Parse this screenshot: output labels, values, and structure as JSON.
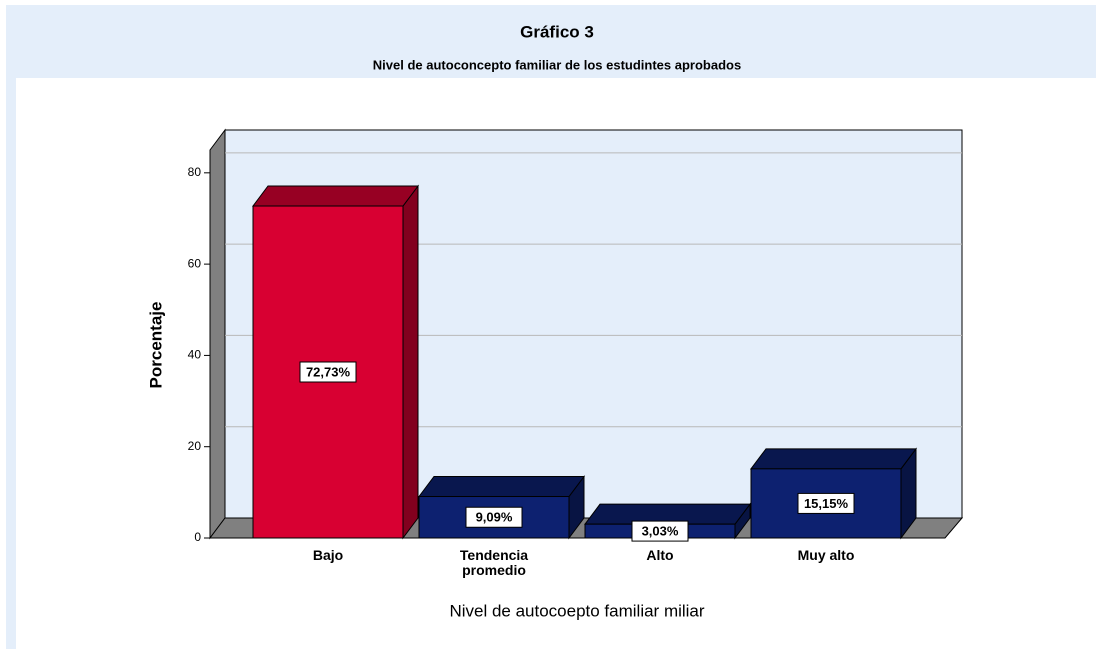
{
  "chart_data": {
    "type": "bar3d",
    "title": "Gráfico 3",
    "subtitle": "Nivel de autoconcepto familiar de los estudintes aprobados",
    "categories": [
      "Bajo",
      "Tendencia promedio",
      "Alto",
      "Muy alto"
    ],
    "values": [
      72.73,
      9.09,
      3.03,
      15.15
    ],
    "value_labels": [
      "72,73%",
      "9,09%",
      "3,03%",
      "15,15%"
    ],
    "colors": [
      "#d80032",
      "#0d2170",
      "#0d2170",
      "#0d2170"
    ],
    "ylim": [
      0,
      85
    ],
    "yticks": [
      0,
      20,
      40,
      60,
      80
    ],
    "grid": true,
    "y_label": "Porcentaje",
    "x_label": "Nivel de autocoepto familiar miliar"
  }
}
